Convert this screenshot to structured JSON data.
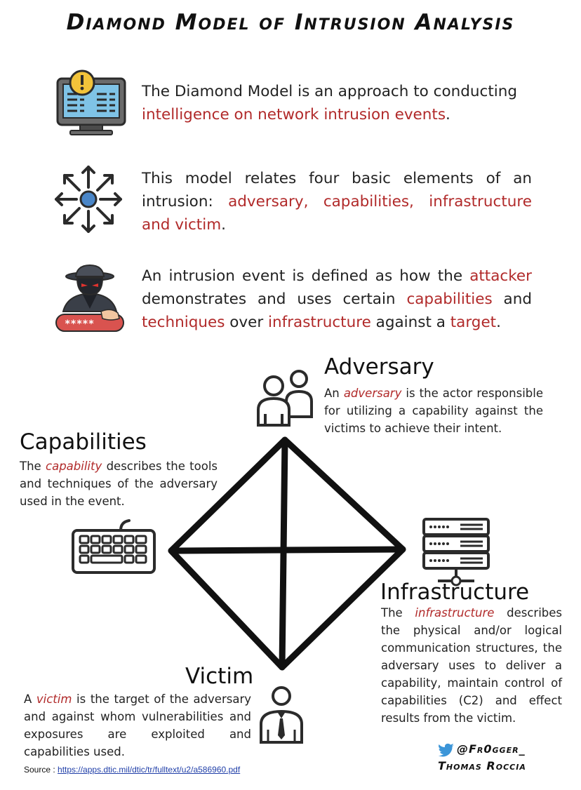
{
  "title": "Diamond Model of Intrusion Analysis",
  "intro": [
    {
      "icon": "monitor-alert-icon",
      "before": "The Diamond Model is an approach to conducting ",
      "highlight": "intelligence on network intrusion events",
      "after": "."
    },
    {
      "icon": "arrows-expand-icon",
      "before": "This model relates four basic elements of an intrusion: ",
      "highlight": "adversary, capabilities, infrastructure and victim",
      "after": "."
    },
    {
      "icon": "hacker-icon",
      "s1": "An intrusion event is defined as how the ",
      "h1": "attacker",
      "s2": " demonstrates and uses certain ",
      "h2": "capabilities",
      "s3": " and ",
      "h3": "techniques",
      "s4": " over ",
      "h4": "infrastructure",
      "s5": " against a ",
      "h5": "target",
      "s6": "."
    }
  ],
  "nodes": {
    "adversary": {
      "title": "Adversary",
      "d1": "An ",
      "hl": "adversary",
      "d2": " is the actor responsible for utilizing a capability against the victims to achieve their intent.",
      "icon": "people-icon"
    },
    "capabilities": {
      "title": "Capabilities",
      "d1": "The ",
      "hl": "capability",
      "d2": " describes the tools and techniques of the adversary used in the event.",
      "icon": "keyboard-icon"
    },
    "infrastructure": {
      "title": "Infrastructure",
      "d1": "The ",
      "hl": "infrastructure",
      "d2": " describes the physical and/or logical communication structures, the adversary uses to deliver a capability, maintain control of capabilities (C2) and effect results from the victim.",
      "icon": "server-icon"
    },
    "victim": {
      "title": "Victim",
      "d1": "A ",
      "hl": "victim",
      "d2": " is the target of the adversary and against whom vulnerabilities and exposures are exploited and capabilities used.",
      "icon": "person-icon"
    }
  },
  "source": {
    "label": "Source : ",
    "url": "https://apps.dtic.mil/dtic/tr/fulltext/u2/a586960.pdf"
  },
  "credit": {
    "handle": "@Fr0gger_",
    "name": "Thomas Roccia"
  },
  "colors": {
    "highlight": "#b12a2a",
    "icon_blue": "#4a86c8",
    "icon_dark": "#2b2b2b"
  }
}
